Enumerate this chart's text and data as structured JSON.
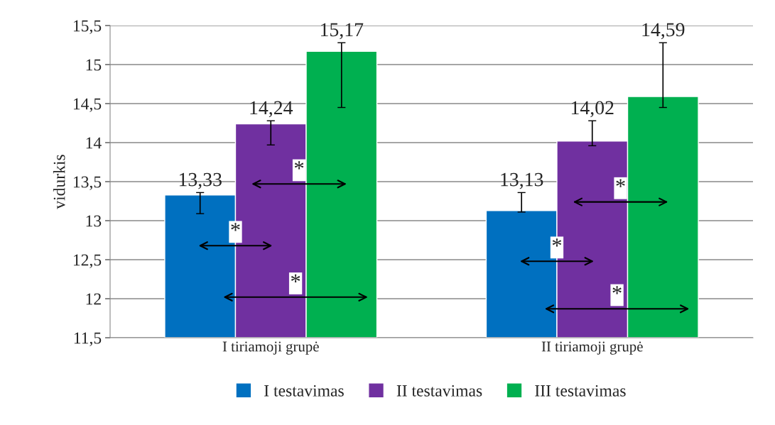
{
  "chart_data": {
    "type": "bar",
    "ylabel": "vidurkis",
    "categories": [
      "I tiriamoji grupė",
      "II tiriamoji grupė"
    ],
    "series": [
      {
        "name": "I testavimas",
        "color": "#0070c0",
        "values": [
          13.33,
          13.13
        ],
        "value_labels": [
          "13,33",
          "13,13"
        ],
        "errors": [
          [
            13.09,
            13.36
          ],
          [
            13.11,
            13.36
          ]
        ]
      },
      {
        "name": "II testavimas",
        "color": "#7030a0",
        "values": [
          14.24,
          14.02
        ],
        "value_labels": [
          "14,24",
          "14,02"
        ],
        "errors": [
          [
            13.97,
            14.28
          ],
          [
            13.96,
            14.28
          ]
        ]
      },
      {
        "name": "III testavimas",
        "color": "#00b050",
        "values": [
          15.17,
          14.59
        ],
        "value_labels": [
          "15,17",
          "14,59"
        ],
        "errors": [
          [
            14.45,
            15.28
          ],
          [
            14.45,
            15.28
          ]
        ]
      }
    ],
    "ylim": [
      11.5,
      15.5
    ],
    "yticks": [
      {
        "value": 11.5,
        "label": "11,5"
      },
      12,
      {
        "value": 12.5,
        "label": "12,5"
      },
      13,
      {
        "value": 13.5,
        "label": "13,5"
      },
      14,
      {
        "value": 14.5,
        "label": "14,5"
      },
      15,
      {
        "value": 15.5,
        "label": "15,5"
      }
    ],
    "annotations": [
      "*",
      "*",
      "*",
      "*",
      "*",
      "*"
    ],
    "grid": "y",
    "legend": "bottom"
  }
}
